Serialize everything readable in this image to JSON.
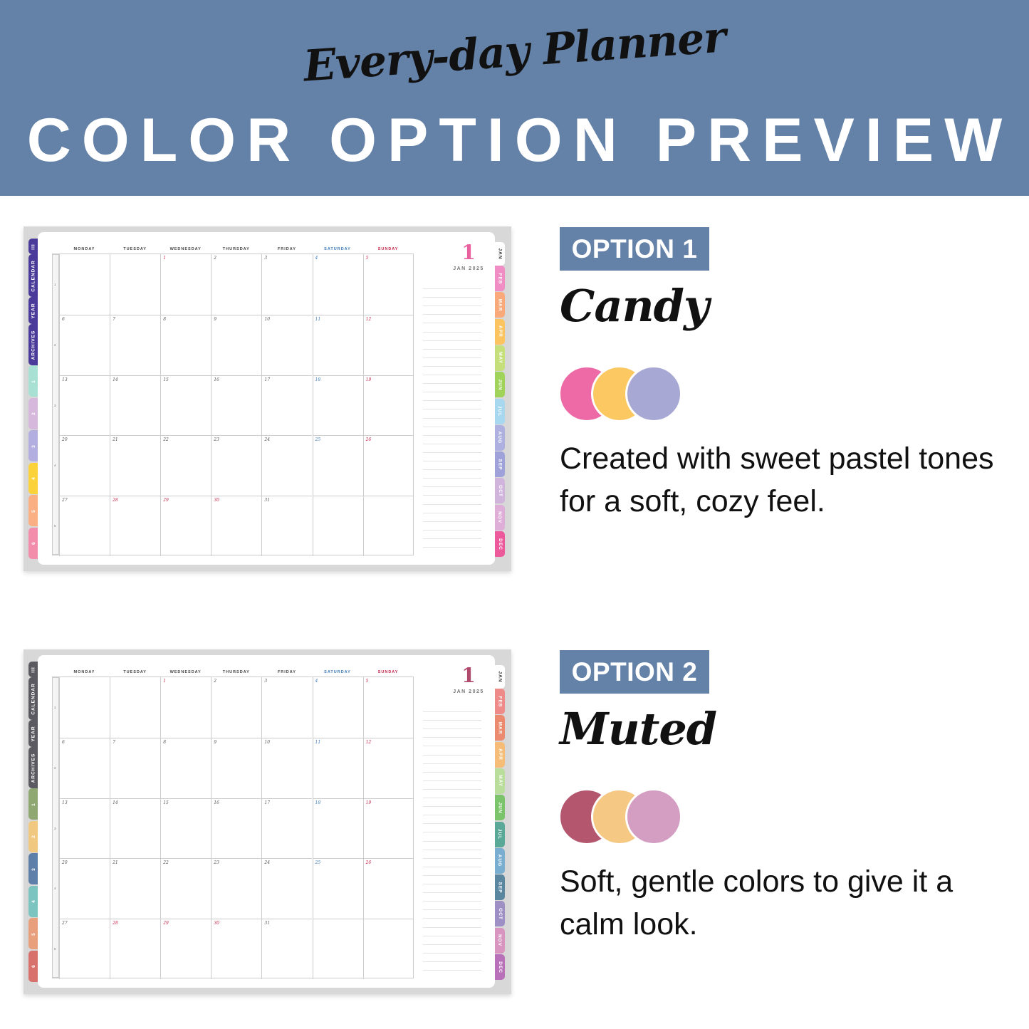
{
  "header": {
    "script_title": "Every-day Planner",
    "title": "COLOR OPTION PREVIEW",
    "background": "#6481a8"
  },
  "calendar": {
    "month_number": "1",
    "month_label": "JAN 2025",
    "day_headers": [
      "MONDAY",
      "TUESDAY",
      "WEDNESDAY",
      "THURSDAY",
      "FRIDAY",
      "SATURDAY",
      "SUNDAY"
    ],
    "week_numbers": [
      "1",
      "2",
      "3",
      "4",
      "5"
    ],
    "weeks": [
      [
        "",
        "",
        "1",
        "2",
        "3",
        "4",
        "5"
      ],
      [
        "6",
        "7",
        "8",
        "9",
        "10",
        "11",
        "12"
      ],
      [
        "13",
        "14",
        "15",
        "16",
        "17",
        "18",
        "19"
      ],
      [
        "20",
        "21",
        "22",
        "23",
        "24",
        "25",
        "26"
      ],
      [
        "27",
        "28",
        "29",
        "30",
        "31",
        "",
        ""
      ]
    ],
    "holidays": [
      "1",
      "28",
      "29",
      "30"
    ],
    "left_tabs": [
      "III",
      "CALENDAR",
      "YEAR",
      "ARCHIVES",
      "1",
      "2",
      "3",
      "4",
      "5",
      "6"
    ],
    "right_tabs": [
      "JAN",
      "FEB",
      "MAR",
      "APR",
      "MAY",
      "JUN",
      "JUL",
      "AUG",
      "SEP",
      "OCT",
      "NOV",
      "DEC"
    ]
  },
  "options": [
    {
      "label": "OPTION 1",
      "name": "Candy",
      "description": "Created with sweet pastel tones for a soft, cozy feel.",
      "swatches": [
        "#ee6aa7",
        "#fbc862",
        "#a8a8d4"
      ],
      "accent": "#e8609e",
      "saturday_color": "#3a7ab8",
      "sunday_color": "#c0284a",
      "left_tab_colors": [
        "#4a3b9a",
        "#a8e0d4",
        "#d6b8dc",
        "#b3aee0",
        "#fcd23a",
        "#fbb083",
        "#f28eac"
      ],
      "right_tab_colors": [
        "#ffffff",
        "#f08dc4",
        "#f9a97a",
        "#fbc460",
        "#c5e07a",
        "#9fd35a",
        "#a8d8f0",
        "#aeb1e0",
        "#9fa2d8",
        "#d0b4dc",
        "#deaed8",
        "#ec5a9c"
      ]
    },
    {
      "label": "OPTION 2",
      "name": "Muted",
      "description": "Soft, gentle colors to give it a calm look.",
      "swatches": [
        "#b5566f",
        "#f5c883",
        "#d49ec3"
      ],
      "accent": "#b04a6c",
      "saturday_color": "#3a7ab8",
      "sunday_color": "#c0284a",
      "left_tab_colors": [
        "#5a5a60",
        "#8fa872",
        "#f0c880",
        "#5d7fa8",
        "#7cc4c0",
        "#e8a07c",
        "#d8706c"
      ],
      "right_tab_colors": [
        "#ffffff",
        "#ee8a88",
        "#ec8a70",
        "#f5bd78",
        "#b9dd9a",
        "#7cc46c",
        "#5aa898",
        "#7aaed0",
        "#5a86a0",
        "#9e90c4",
        "#d895c0",
        "#b870b8"
      ]
    }
  ]
}
